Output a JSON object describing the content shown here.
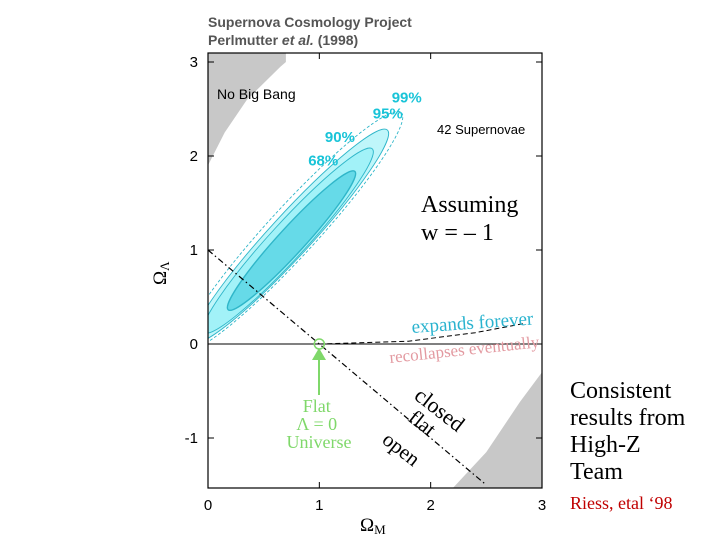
{
  "chart_data": {
    "type": "scatter",
    "header": {
      "project": "Supernova Cosmology Project",
      "authors": "Perlmutter",
      "et_al": "et al.",
      "year": "(1998)"
    },
    "xlabel": "Ω",
    "xlabel_sub": "M",
    "ylabel": "Ω",
    "ylabel_sub": "Λ",
    "xlim": [
      0,
      3
    ],
    "ylim": [
      -1.6,
      3
    ],
    "xticks": [
      "0",
      "1",
      "2",
      "3"
    ],
    "yticks": [
      {
        "label": "3",
        "value": 3
      },
      {
        "label": "2",
        "value": 2
      },
      {
        "label": "1",
        "value": 1
      },
      {
        "label": "0",
        "value": 0
      },
      {
        "label": "-1",
        "value": -1
      }
    ],
    "confidence_contours": [
      {
        "label": "68%",
        "label_at": [
          0.9,
          1.9
        ],
        "center": [
          0.75,
          1.1
        ],
        "major": 0.98,
        "minor": 0.14,
        "angle_deg": 47.5
      },
      {
        "label": "90%",
        "label_at": [
          1.05,
          2.15
        ],
        "center": [
          0.72,
          1.1
        ],
        "major": 1.3,
        "minor": 0.19,
        "angle_deg": 47.5
      },
      {
        "label": "95%",
        "label_at": [
          1.48,
          2.4
        ],
        "center": [
          0.74,
          1.15
        ],
        "major": 1.5,
        "minor": 0.22,
        "angle_deg": 47.5
      },
      {
        "label": "99%",
        "label_at": [
          1.65,
          2.57
        ],
        "center": [
          0.76,
          1.2
        ],
        "major": 1.68,
        "minor": 0.26,
        "angle_deg": 47.5
      }
    ],
    "no_big_bang_region": {
      "label": "No Big Bang",
      "boundary": [
        [
          0,
          1.9
        ],
        [
          0.15,
          2.25
        ],
        [
          0.35,
          2.6
        ],
        [
          0.65,
          2.95
        ],
        [
          0.7,
          3
        ]
      ]
    },
    "bottom_right_region": {
      "boundary": [
        [
          2.2,
          -1.6
        ],
        [
          2.5,
          -1.15
        ],
        [
          2.8,
          -0.62
        ],
        [
          3,
          -0.3
        ]
      ]
    },
    "flat_line": {
      "points": [
        [
          0,
          1
        ],
        [
          2.5,
          -1.5
        ]
      ]
    },
    "expansion_boundary": {
      "points": [
        [
          1.0,
          0
        ],
        [
          1.8,
          0.03
        ],
        [
          2.4,
          0.12
        ],
        [
          2.85,
          0.22
        ]
      ]
    },
    "flat_universe_point": [
      1,
      0
    ],
    "annotations": {
      "supernovae": "42 Supernovae",
      "assumption": [
        "Assuming",
        "w = – 1"
      ],
      "expands": "expands forever",
      "recollapses": "recollapses eventually",
      "closed": "closed",
      "flat": "flat",
      "open": "open",
      "flat_universe": [
        "Flat",
        "Λ = 0",
        "Universe"
      ]
    }
  },
  "conclusion": {
    "lines": [
      "Consistent",
      "results from",
      "High-Z",
      "Team"
    ],
    "citation": "Riess, etal ‘98"
  },
  "colors": {
    "contour_fill": "#8aeef6",
    "contour_inner_fill": "#5fd7e6",
    "contour_line": "#2fb6c9",
    "contour_label": "#19c4d8",
    "excluded_region": "#c8c8c8",
    "expands_text": "#2ab3cf",
    "recollapses_text": "#e39aa1",
    "flat_label": "#7fd86a",
    "citation": "#c00000"
  }
}
